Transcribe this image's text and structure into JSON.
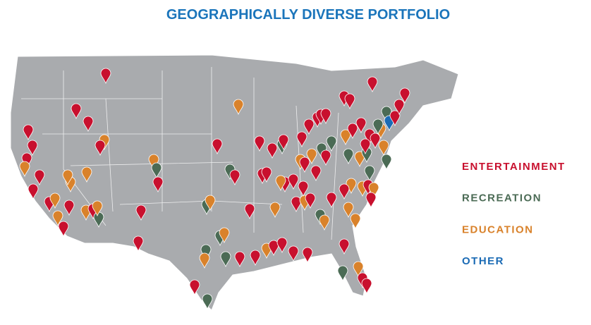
{
  "title": "GEOGRAPHICALLY DIVERSE PORTFOLIO",
  "legend": [
    {
      "label": "ENTERTAINMENT",
      "color": "#c8102e"
    },
    {
      "label": "RECREATION",
      "color": "#4b6b55"
    },
    {
      "label": "EDUCATION",
      "color": "#d9822b"
    },
    {
      "label": "OTHER",
      "color": "#1b6bb5"
    }
  ]
}
